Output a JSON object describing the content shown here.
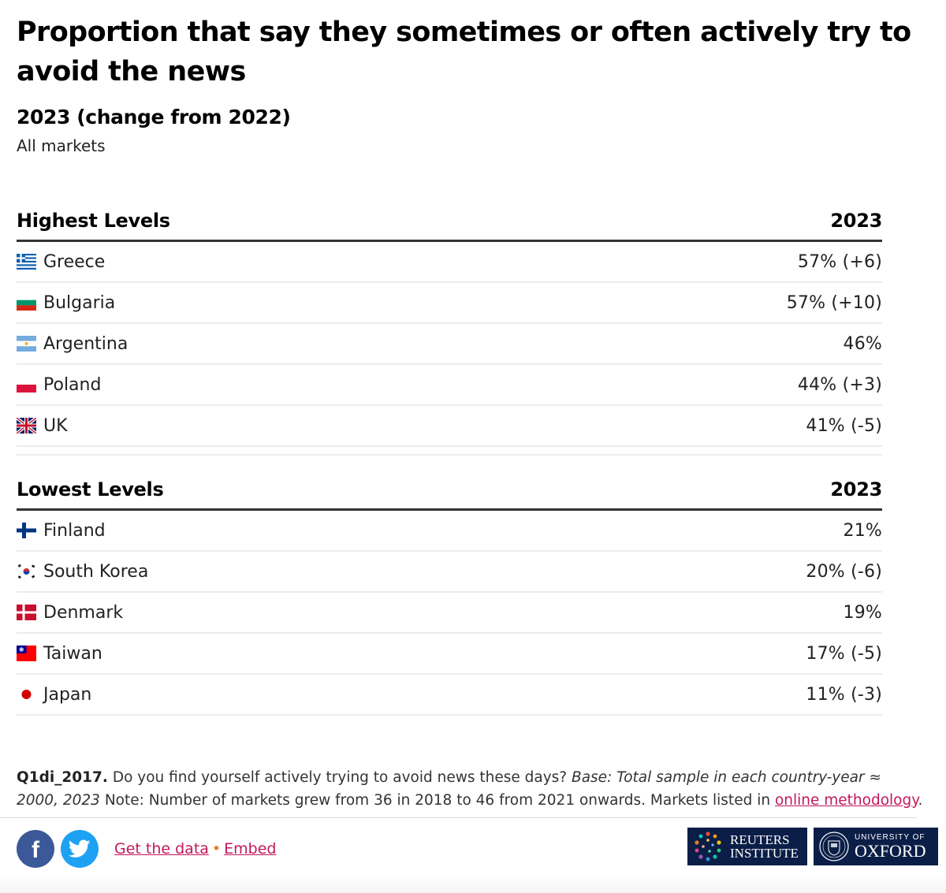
{
  "title": "Proportion that say they sometimes or often actively try to avoid the news",
  "subtitle": "2023 (change from 2022)",
  "markets": "All markets",
  "chart_data": {
    "type": "table",
    "sections": [
      {
        "heading": "Highest Levels",
        "column": "2023",
        "rows": [
          {
            "country": "Greece",
            "value": 57,
            "change": 6,
            "display": "57% (+6)",
            "flag": "flag-greece"
          },
          {
            "country": "Bulgaria",
            "value": 57,
            "change": 10,
            "display": "57% (+10)",
            "flag": "flag-bulgaria"
          },
          {
            "country": "Argentina",
            "value": 46,
            "change": null,
            "display": "46%",
            "flag": "flag-argentina"
          },
          {
            "country": "Poland",
            "value": 44,
            "change": 3,
            "display": "44% (+3)",
            "flag": "flag-poland"
          },
          {
            "country": "UK",
            "value": 41,
            "change": -5,
            "display": "41% (-5)",
            "flag": "flag-uk"
          }
        ]
      },
      {
        "heading": "Lowest Levels",
        "column": "2023",
        "rows": [
          {
            "country": "Finland",
            "value": 21,
            "change": null,
            "display": "21%",
            "flag": "flag-finland"
          },
          {
            "country": "South Korea",
            "value": 20,
            "change": -6,
            "display": "20% (-6)",
            "flag": "flag-south-korea"
          },
          {
            "country": "Denmark",
            "value": 19,
            "change": null,
            "display": "19%",
            "flag": "flag-denmark"
          },
          {
            "country": "Taiwan",
            "value": 17,
            "change": -5,
            "display": "17% (-5)",
            "flag": "flag-taiwan"
          },
          {
            "country": "Japan",
            "value": 11,
            "change": -3,
            "display": "11% (-3)",
            "flag": "flag-japan"
          }
        ]
      }
    ]
  },
  "footnote": {
    "code": "Q1di_2017.",
    "question": " Do you find yourself actively trying to avoid news these days? ",
    "base_italic": "Base: Total sample in each country-year ≈ 2000, 2023",
    "note": " Note: Number of markets grew from 36 in 2018 to 46 from 2021 onwards. Markets listed in ",
    "link": "online methodology",
    "end": "."
  },
  "footer": {
    "get_data": "Get the data",
    "separator": "•",
    "embed": "Embed",
    "facebook_icon": "facebook-icon",
    "twitter_icon": "twitter-icon",
    "facebook_color": "#3b5998",
    "twitter_color": "#1da1f2",
    "reuters_line1": "REUTERS",
    "reuters_line2": "INSTITUTE",
    "oxford_line1": "UNIVERSITY OF",
    "oxford_line2": "OXFORD",
    "logo_color": "#0b1e47",
    "link_color": "#c2185b"
  }
}
